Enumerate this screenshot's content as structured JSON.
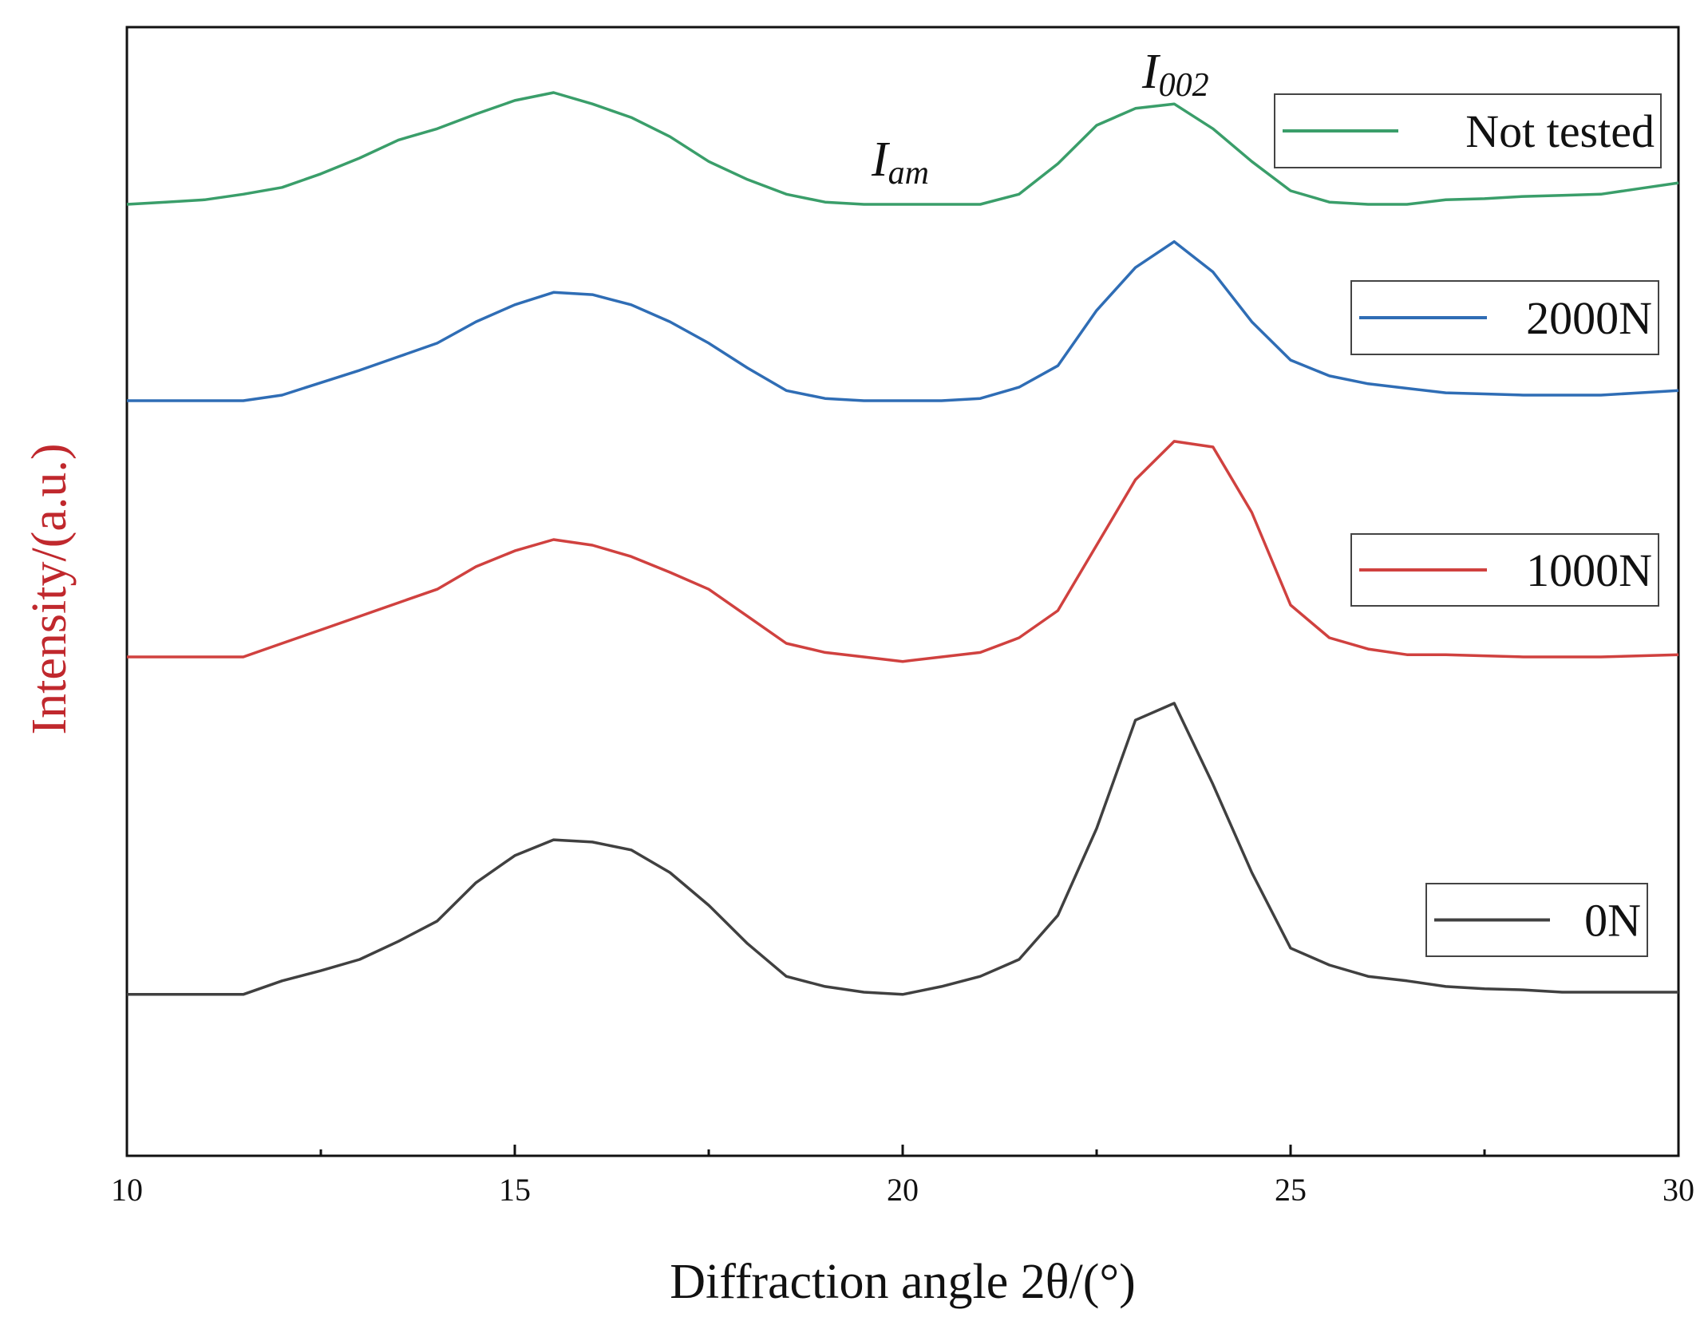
{
  "chart_data": {
    "type": "line",
    "x_label": "Diffraction angle 2θ/(°)",
    "y_label": "Intensity/(a.u.)",
    "xlim": [
      10,
      30
    ],
    "xticks": [
      10,
      15,
      20,
      25,
      30
    ],
    "xminorticks": [
      12.5,
      17.5,
      22.5,
      27.5
    ],
    "ylim": [
      0,
      100
    ],
    "x": [
      10,
      10.5,
      11,
      11.5,
      12,
      12.5,
      13,
      13.5,
      14,
      14.5,
      15,
      15.5,
      16,
      16.5,
      17,
      17.5,
      18,
      18.5,
      19,
      19.5,
      20,
      20.5,
      21,
      21.5,
      22,
      22.5,
      23,
      23.5,
      24,
      24.5,
      25,
      25.5,
      26,
      26.5,
      27,
      27.5,
      28,
      28.5,
      29,
      29.5,
      30
    ],
    "series": [
      {
        "name": "Not tested",
        "color": "#3a9e6a",
        "values": [
          84.3,
          84.5,
          84.7,
          85.2,
          85.8,
          87.0,
          88.4,
          90.0,
          91.0,
          92.3,
          93.5,
          94.2,
          93.2,
          92.0,
          90.3,
          88.1,
          86.5,
          85.2,
          84.5,
          84.3,
          84.3,
          84.3,
          84.3,
          85.2,
          87.9,
          91.3,
          92.8,
          93.2,
          91.0,
          88.1,
          85.5,
          84.5,
          84.3,
          84.3,
          84.7,
          84.8,
          85.0,
          85.1,
          85.2,
          85.7,
          86.2
        ]
      },
      {
        "name": "2000N",
        "color": "#2f6db5",
        "values": [
          66.9,
          66.9,
          66.9,
          66.9,
          67.4,
          68.5,
          69.6,
          70.8,
          72.0,
          73.9,
          75.4,
          76.5,
          76.3,
          75.4,
          73.9,
          72.0,
          69.8,
          67.8,
          67.1,
          66.9,
          66.9,
          66.9,
          67.1,
          68.1,
          70.0,
          74.9,
          78.7,
          81.0,
          78.3,
          73.9,
          70.5,
          69.1,
          68.4,
          68.0,
          67.6,
          67.5,
          67.4,
          67.4,
          67.4,
          67.6,
          67.8
        ]
      },
      {
        "name": "1000N",
        "color": "#d0413f",
        "values": [
          44.2,
          44.2,
          44.2,
          44.2,
          45.4,
          46.6,
          47.8,
          49.0,
          50.2,
          52.2,
          53.6,
          54.6,
          54.1,
          53.1,
          51.7,
          50.2,
          47.8,
          45.4,
          44.6,
          44.2,
          43.8,
          44.2,
          44.6,
          45.9,
          48.3,
          54.1,
          59.9,
          63.3,
          62.8,
          57.0,
          48.8,
          45.9,
          44.9,
          44.4,
          44.4,
          44.3,
          44.2,
          44.2,
          44.2,
          44.3,
          44.4
        ]
      },
      {
        "name": "0N",
        "color": "#404040",
        "values": [
          14.3,
          14.3,
          14.3,
          14.3,
          15.5,
          16.4,
          17.4,
          19.0,
          20.8,
          24.2,
          26.6,
          28.0,
          27.8,
          27.1,
          25.1,
          22.2,
          18.8,
          15.9,
          15.0,
          14.5,
          14.3,
          15.0,
          15.9,
          17.4,
          21.3,
          29.0,
          38.6,
          40.1,
          32.9,
          25.1,
          18.4,
          16.9,
          15.9,
          15.5,
          15.0,
          14.8,
          14.7,
          14.5,
          14.5,
          14.5,
          14.5
        ]
      }
    ],
    "annotations": [
      {
        "text": "I",
        "subscript": "am"
      },
      {
        "text": "I",
        "subscript": "002"
      }
    ],
    "y_label_color": "#c0282d"
  }
}
